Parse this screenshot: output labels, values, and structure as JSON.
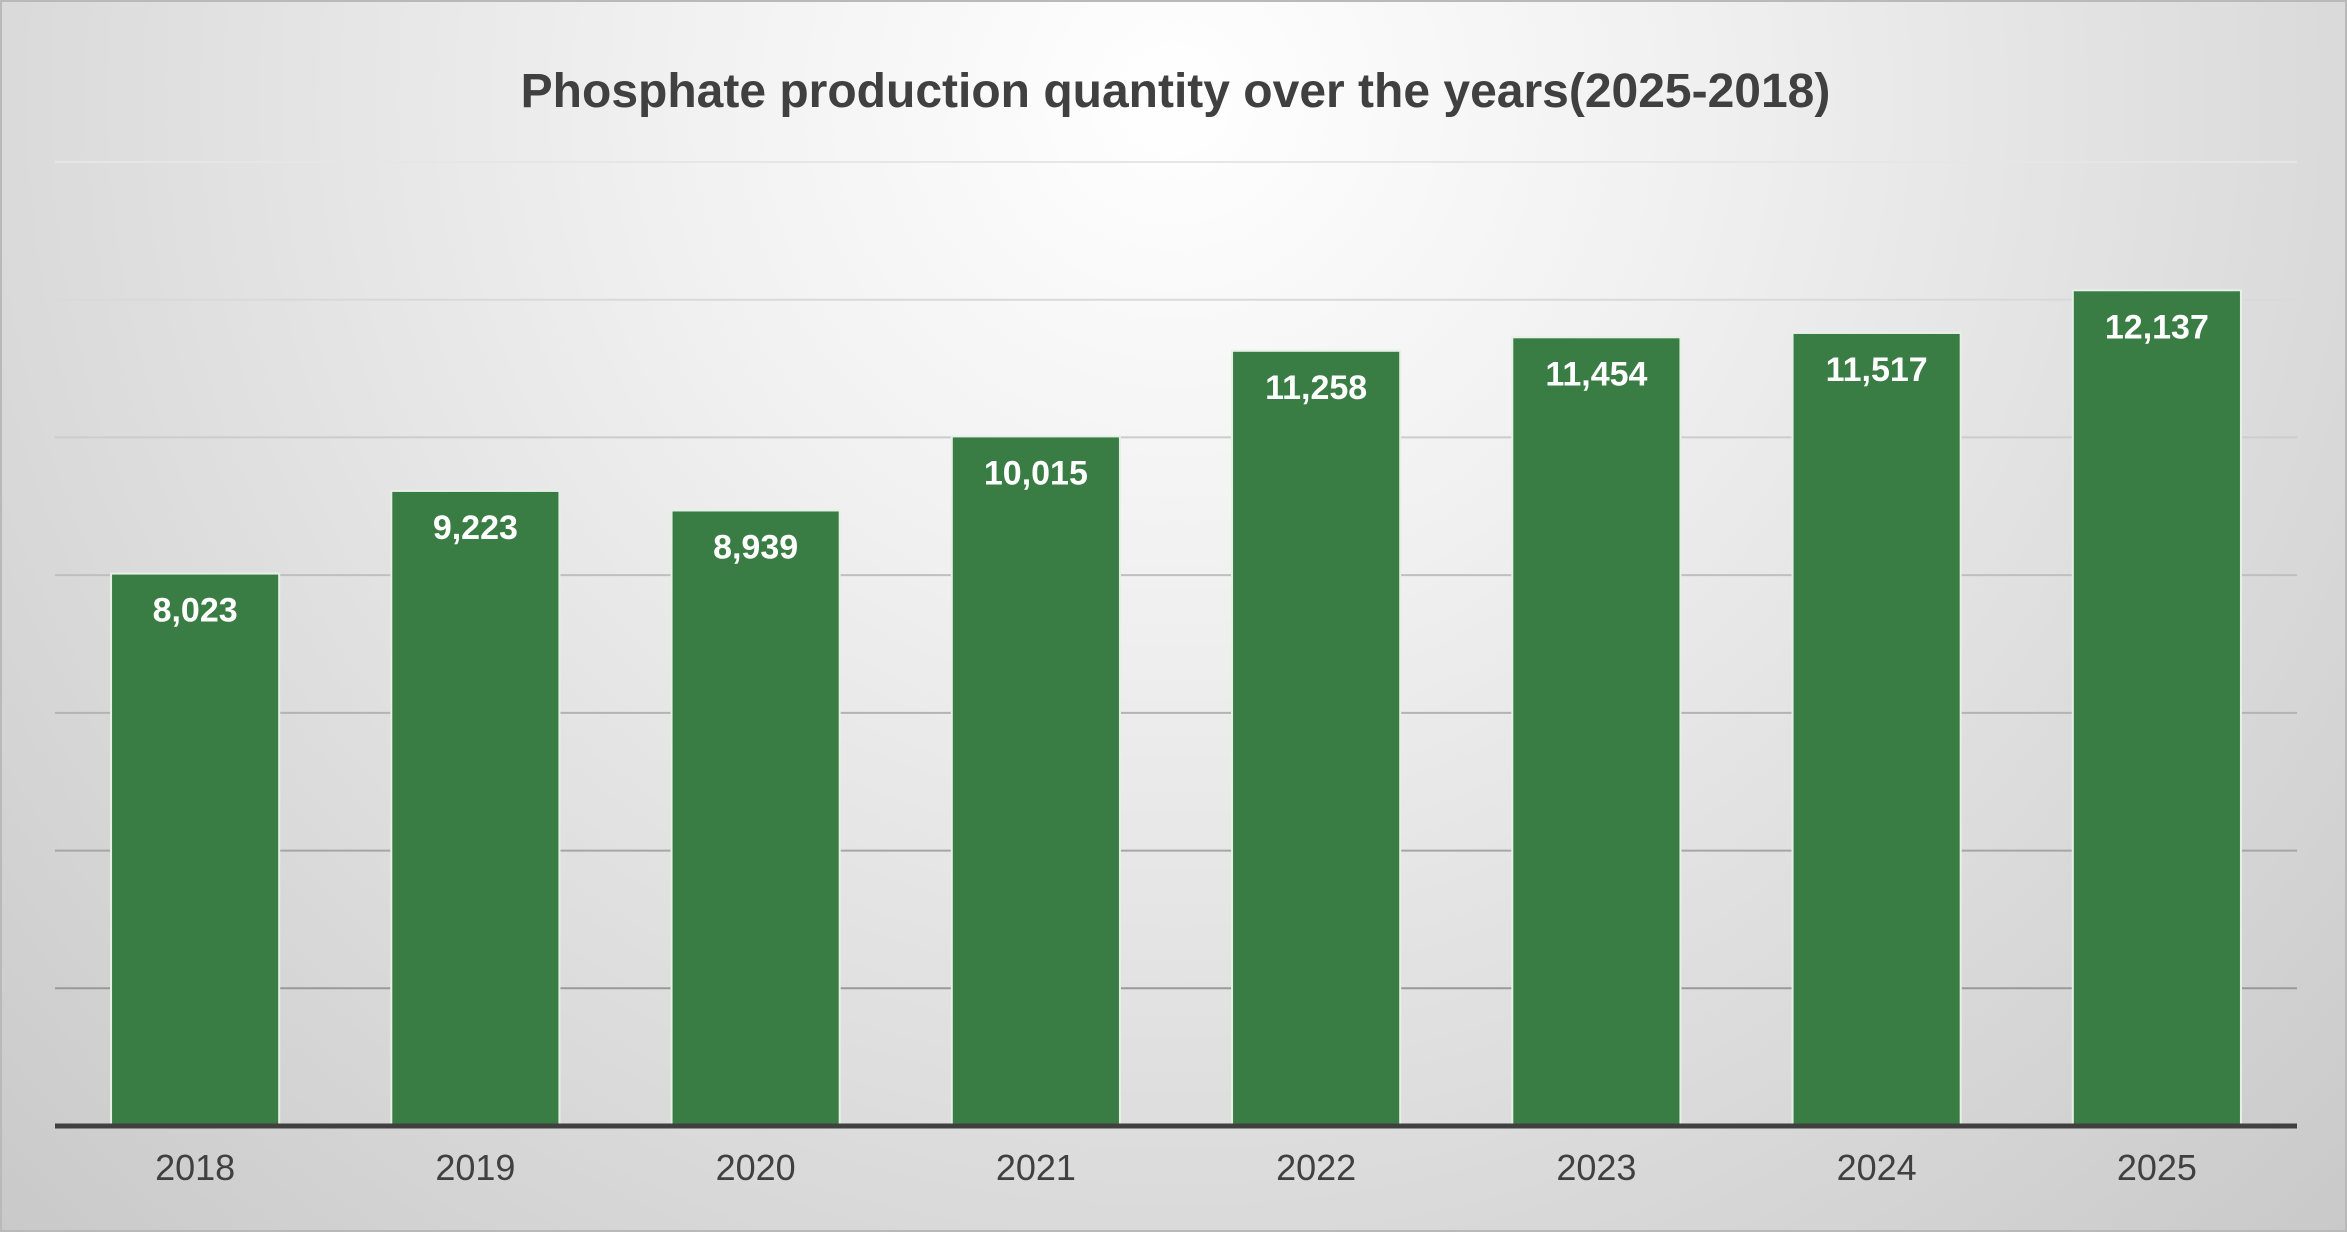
{
  "chart_data": {
    "type": "bar",
    "title": "Phosphate production quantity over the years(2025-2018)",
    "xlabel": "",
    "ylabel": "",
    "categories": [
      "2018",
      "2019",
      "2020",
      "2021",
      "2022",
      "2023",
      "2024",
      "2025"
    ],
    "values": [
      8023,
      9223,
      8939,
      10015,
      11258,
      11454,
      11517,
      12137
    ],
    "data_labels": [
      "8,023",
      "9,223",
      "8,939",
      "10,015",
      "11,258",
      "11,454",
      "11,517",
      "12,137"
    ],
    "ylim": [
      0,
      14000
    ],
    "y_tick_step": 2000,
    "y_tick_labels_visible": false,
    "grid": true,
    "legend": "none",
    "colors": {
      "bar": "#3a7d44",
      "data_label": "#ffffff",
      "gridline": "#999999",
      "axis": "#404040"
    }
  }
}
